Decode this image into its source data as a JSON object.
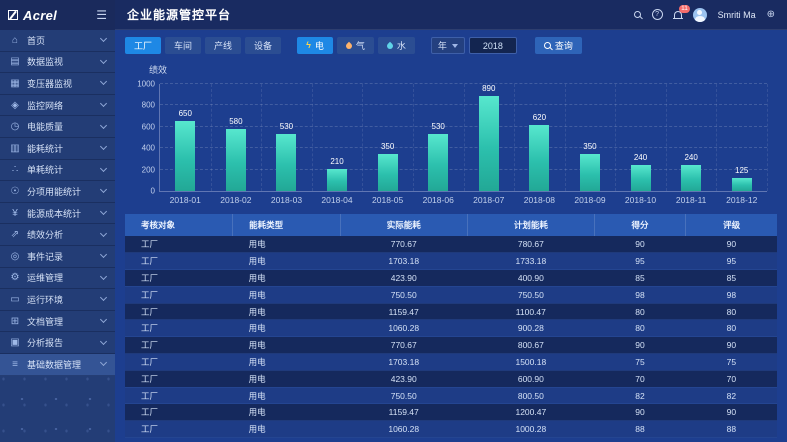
{
  "brand": {
    "logo_text": "Acrel"
  },
  "header": {
    "title": "企业能源管控平台",
    "user_name": "Smriti Ma",
    "notification_count": "11"
  },
  "sidebar": {
    "items": [
      {
        "name": "home",
        "label": "首页",
        "icon": "home-icon"
      },
      {
        "name": "data-monitoring",
        "label": "数据监视",
        "icon": "data-monitor-icon"
      },
      {
        "name": "transformer-monitoring",
        "label": "变压器监视",
        "icon": "transformer-monitor-icon"
      },
      {
        "name": "monitoring-network",
        "label": "监控网络",
        "icon": "network-monitor-icon"
      },
      {
        "name": "power-quality",
        "label": "电能质量",
        "icon": "power-quality-icon"
      },
      {
        "name": "energy-consumption-stats",
        "label": "能耗统计",
        "icon": "energy-stats-icon"
      },
      {
        "name": "unit-consumption-stats",
        "label": "单耗统计",
        "icon": "unit-consumption-icon"
      },
      {
        "name": "subitem-energy-stats",
        "label": "分项用能统计",
        "icon": "subitem-energy-icon"
      },
      {
        "name": "energy-cost-stats",
        "label": "能源成本统计",
        "icon": "energy-cost-icon"
      },
      {
        "name": "performance-analysis",
        "label": "绩效分析",
        "icon": "performance-analysis-icon"
      },
      {
        "name": "event-records",
        "label": "事件记录",
        "icon": "event-record-icon"
      },
      {
        "name": "om-management",
        "label": "运维管理",
        "icon": "om-management-icon"
      },
      {
        "name": "operating-environment",
        "label": "运行环境",
        "icon": "operating-env-icon"
      },
      {
        "name": "document-management",
        "label": "文档管理",
        "icon": "document-management-icon"
      },
      {
        "name": "analysis-report",
        "label": "分析报告",
        "icon": "analysis-report-icon"
      },
      {
        "name": "basic-data-management",
        "label": "基础数据管理",
        "icon": "basic-data-icon",
        "active": true
      }
    ]
  },
  "filters": {
    "scope_tabs": [
      {
        "name": "factory",
        "label": "工厂",
        "active": true
      },
      {
        "name": "workshop",
        "label": "车间",
        "active": false
      },
      {
        "name": "line",
        "label": "产线",
        "active": false
      },
      {
        "name": "device",
        "label": "设备",
        "active": false
      }
    ],
    "energy_tabs": [
      {
        "name": "electricity",
        "label": "电",
        "icon": "bolt-icon",
        "active": true
      },
      {
        "name": "gas",
        "label": "气",
        "icon": "flame-icon",
        "active": false
      },
      {
        "name": "water",
        "label": "水",
        "icon": "drop-icon",
        "active": false
      }
    ],
    "period_label": "年",
    "year_value": "2018",
    "search_label": "查询"
  },
  "chart_data": {
    "type": "bar",
    "title": "绩效",
    "categories": [
      "2018-01",
      "2018-02",
      "2018-03",
      "2018-04",
      "2018-05",
      "2018-06",
      "2018-07",
      "2018-08",
      "2018-09",
      "2018-10",
      "2018-11",
      "2018-12"
    ],
    "values": [
      650,
      580,
      530,
      210,
      350,
      530,
      890,
      620,
      350,
      240,
      240,
      125
    ],
    "xlabel": "",
    "ylabel": "",
    "ylim": [
      0,
      1000
    ],
    "ytick_step": 200,
    "grid": "dashed",
    "legend": "none",
    "bar_color_top": "#57e7ce",
    "bar_color_bottom": "#22a896"
  },
  "table": {
    "headers": [
      "考核对象",
      "能耗类型",
      "实际能耗",
      "计划能耗",
      "得分",
      "评级"
    ],
    "rows": [
      [
        "工厂",
        "用电",
        "770.67",
        "780.67",
        "90",
        "90"
      ],
      [
        "工厂",
        "用电",
        "1703.18",
        "1733.18",
        "95",
        "95"
      ],
      [
        "工厂",
        "用电",
        "423.90",
        "400.90",
        "85",
        "85"
      ],
      [
        "工厂",
        "用电",
        "750.50",
        "750.50",
        "98",
        "98"
      ],
      [
        "工厂",
        "用电",
        "1159.47",
        "1100.47",
        "80",
        "80"
      ],
      [
        "工厂",
        "用电",
        "1060.28",
        "900.28",
        "80",
        "80"
      ],
      [
        "工厂",
        "用电",
        "770.67",
        "800.67",
        "90",
        "90"
      ],
      [
        "工厂",
        "用电",
        "1703.18",
        "1500.18",
        "75",
        "75"
      ],
      [
        "工厂",
        "用电",
        "423.90",
        "600.90",
        "70",
        "70"
      ],
      [
        "工厂",
        "用电",
        "750.50",
        "800.50",
        "82",
        "82"
      ],
      [
        "工厂",
        "用电",
        "1159.47",
        "1200.47",
        "90",
        "90"
      ],
      [
        "工厂",
        "用电",
        "1060.28",
        "1000.28",
        "88",
        "88"
      ]
    ]
  },
  "colors": {
    "accent_active": "#1e88e5",
    "main_background": "#1d3e8f",
    "sidebar_background": "#233d76",
    "topbar_background": "#192b61",
    "table_header": "#2a5ab2",
    "row_odd": "#15295d",
    "row_even": "#1e3c86",
    "bar_top": "#57e7ce",
    "bar_bottom": "#22a896",
    "badge": "#f56c6c"
  }
}
